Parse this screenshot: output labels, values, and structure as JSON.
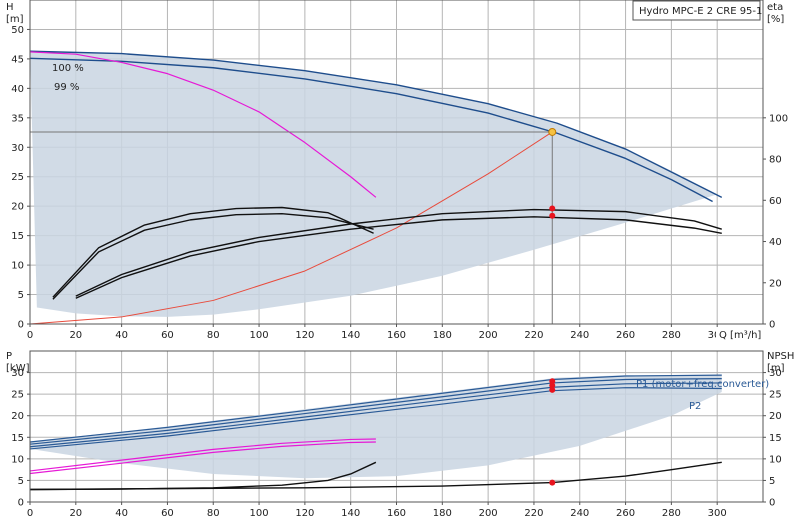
{
  "title": "Hydro MPC-E 2 CRE 95-1",
  "colors": {
    "area": "#c9d5e2",
    "area_light": "#e3eaf2",
    "head": "#1e4d8c",
    "power": "#2a5a96",
    "pink": "#e619d6",
    "eff": "#111111",
    "system": "#e84b3c",
    "op_marker": "#f5c242",
    "red_marker": "#e8141e",
    "duty_line": "#777777"
  },
  "chart_data": [
    {
      "type": "line",
      "name": "top",
      "xlabel": "Q [m³/h]",
      "ylabel": "H\n[m]",
      "y2label": "eta\n[%]",
      "xlim": [
        0,
        320
      ],
      "ylim": [
        0,
        55
      ],
      "y2lim": [
        0,
        157.14
      ],
      "x_ticks": [
        0,
        20,
        40,
        60,
        80,
        100,
        120,
        140,
        160,
        180,
        200,
        220,
        240,
        260,
        280,
        300
      ],
      "y_ticks": [
        0,
        5,
        10,
        15,
        20,
        25,
        30,
        35,
        40,
        45,
        50
      ],
      "y2_ticks": [
        0,
        20,
        40,
        60,
        80,
        100
      ],
      "grid": true,
      "annotations": [
        "100 %",
        "99 %"
      ],
      "area_upper": [
        [
          0,
          46.3
        ],
        [
          40,
          45.9
        ],
        [
          80,
          44.8
        ],
        [
          120,
          43
        ],
        [
          160,
          40.6
        ],
        [
          200,
          37.4
        ],
        [
          230,
          34.2
        ],
        [
          260,
          29.8
        ],
        [
          280,
          26
        ],
        [
          300,
          22
        ]
      ],
      "area_lower": [
        [
          3,
          2.8
        ],
        [
          20,
          1.8
        ],
        [
          40,
          1.3
        ],
        [
          60,
          1.2
        ],
        [
          80,
          1.6
        ],
        [
          100,
          2.5
        ],
        [
          140,
          4.8
        ],
        [
          180,
          8.2
        ],
        [
          220,
          12.6
        ],
        [
          260,
          17.2
        ],
        [
          300,
          22
        ]
      ],
      "series": [
        {
          "role": "head",
          "x": [
            0,
            40,
            80,
            120,
            160,
            200,
            230,
            260,
            280,
            302
          ],
          "y": [
            46.3,
            45.9,
            44.8,
            43,
            40.6,
            37.4,
            34.1,
            29.7,
            25.8,
            21.5
          ]
        },
        {
          "role": "head",
          "x": [
            0,
            40,
            80,
            120,
            160,
            200,
            230,
            260,
            280,
            298
          ],
          "y": [
            45.1,
            44.6,
            43.5,
            41.6,
            39.1,
            35.8,
            32.4,
            28.1,
            24.5,
            20.8
          ]
        },
        {
          "role": "pink",
          "x": [
            0,
            20,
            40,
            60,
            80,
            100,
            120,
            140,
            151
          ],
          "y": [
            46.2,
            45.8,
            44.4,
            42.5,
            39.7,
            36,
            30.8,
            25,
            21.5
          ]
        },
        {
          "role": "system",
          "x": [
            0,
            40,
            80,
            120,
            160,
            200,
            228
          ],
          "y": [
            0,
            1.2,
            4,
            9,
            16.3,
            25.5,
            32.6
          ]
        },
        {
          "role": "eff",
          "axis": "y2",
          "x": [
            10,
            30,
            50,
            70,
            90,
            110,
            130,
            150
          ],
          "y": [
            13,
            37,
            48,
            53.5,
            56,
            56.5,
            54,
            44
          ]
        },
        {
          "role": "eff",
          "axis": "y2",
          "x": [
            10,
            30,
            50,
            70,
            90,
            110,
            130,
            150
          ],
          "y": [
            12,
            35,
            45.5,
            50.5,
            53,
            53.5,
            51.5,
            46
          ]
        },
        {
          "role": "eff",
          "axis": "y2",
          "x": [
            20,
            40,
            70,
            100,
            140,
            180,
            220,
            260,
            290,
            302
          ],
          "y": [
            13.5,
            24,
            35,
            42,
            48.5,
            53.5,
            55.5,
            54.5,
            50,
            46
          ]
        },
        {
          "role": "eff",
          "axis": "y2",
          "x": [
            20,
            40,
            70,
            100,
            140,
            180,
            220,
            260,
            290,
            302
          ],
          "y": [
            12.5,
            22.5,
            33,
            40,
            46,
            50.5,
            52,
            50.5,
            46.5,
            44
          ]
        }
      ],
      "operating_point": {
        "q": 228,
        "h": 32.6
      },
      "markers": [
        {
          "q": 228,
          "y2": 56
        },
        {
          "q": 228,
          "y2": 52.5
        }
      ]
    },
    {
      "type": "line",
      "name": "bottom",
      "ylabel": "P\n[kW]",
      "y2label": "NPSH\n[m]",
      "xlim": [
        0,
        320
      ],
      "ylim": [
        0,
        35
      ],
      "x_ticks": [
        0,
        20,
        40,
        60,
        80,
        100,
        120,
        140,
        160,
        180,
        200,
        220,
        240,
        260,
        280,
        300
      ],
      "y_ticks": [
        0,
        5,
        10,
        15,
        20,
        25,
        30
      ],
      "y2_ticks": [
        0,
        5,
        10,
        15,
        20,
        25,
        30
      ],
      "grid": true,
      "legend": [
        "P1 (motor+freq.converter)",
        "P2"
      ],
      "area_upper": [
        [
          0,
          14
        ],
        [
          60,
          17.5
        ],
        [
          120,
          21.5
        ],
        [
          180,
          25.5
        ],
        [
          230,
          28.8
        ],
        [
          260,
          29.4
        ],
        [
          302,
          29.5
        ]
      ],
      "area_lower": [
        [
          0,
          12.3
        ],
        [
          40,
          9
        ],
        [
          80,
          6.5
        ],
        [
          120,
          5.5
        ],
        [
          160,
          6
        ],
        [
          200,
          8.5
        ],
        [
          240,
          13
        ],
        [
          280,
          20
        ],
        [
          302,
          25.5
        ]
      ],
      "series": [
        {
          "role": "power",
          "x": [
            0,
            60,
            120,
            180,
            228,
            260,
            302
          ],
          "y": [
            13.9,
            17.3,
            21.2,
            25.2,
            28.4,
            29.2,
            29.4
          ]
        },
        {
          "role": "power",
          "x": [
            0,
            60,
            120,
            180,
            228,
            260,
            302
          ],
          "y": [
            13.4,
            16.6,
            20.5,
            24.4,
            27.6,
            28.4,
            28.6
          ]
        },
        {
          "role": "power",
          "x": [
            0,
            60,
            120,
            180,
            228,
            260,
            302
          ],
          "y": [
            12.8,
            15.9,
            19.7,
            23.6,
            26.6,
            27.4,
            27.6
          ]
        },
        {
          "role": "power",
          "x": [
            0,
            60,
            120,
            180,
            228,
            260,
            302
          ],
          "y": [
            12.3,
            15.3,
            19,
            22.7,
            25.8,
            26.5,
            26.3
          ]
        },
        {
          "role": "pink",
          "x": [
            0,
            40,
            80,
            110,
            140,
            151
          ],
          "y": [
            7.2,
            9.7,
            12.2,
            13.6,
            14.5,
            14.6
          ]
        },
        {
          "role": "pink",
          "x": [
            0,
            40,
            80,
            110,
            140,
            151
          ],
          "y": [
            6.6,
            9,
            11.5,
            12.9,
            13.8,
            13.9
          ]
        },
        {
          "role": "eff",
          "x": [
            0,
            40,
            80,
            110,
            130,
            140,
            151
          ],
          "y": [
            2.9,
            3,
            3.3,
            3.9,
            5,
            6.5,
            9.2
          ]
        },
        {
          "role": "eff",
          "x": [
            0,
            60,
            120,
            180,
            228,
            260,
            280,
            302
          ],
          "y": [
            2.9,
            3.1,
            3.3,
            3.7,
            4.5,
            6,
            7.5,
            9.2
          ]
        }
      ],
      "markers": [
        {
          "q": 228,
          "y": 28
        },
        {
          "q": 228,
          "y": 27
        },
        {
          "q": 228,
          "y": 26
        },
        {
          "q": 228,
          "y": 4.5
        }
      ]
    }
  ]
}
